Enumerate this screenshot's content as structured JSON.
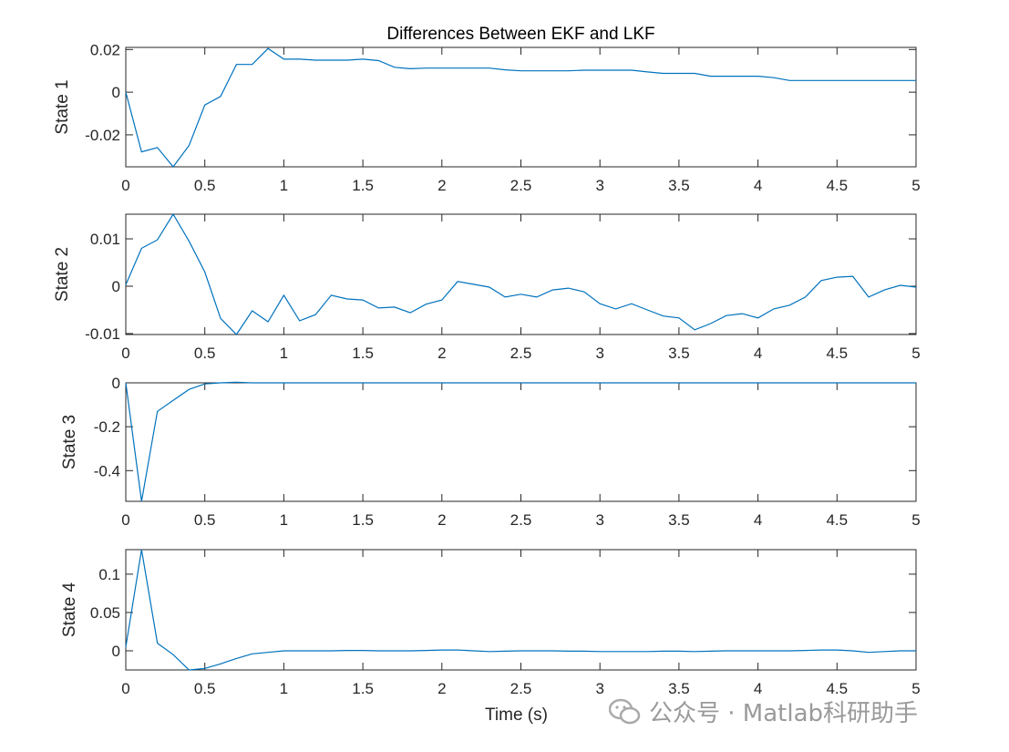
{
  "chart_data": [
    {
      "type": "line",
      "title": "Differences Between EKF and LKF",
      "ylabel": "State 1",
      "xlabel": "",
      "xlim": [
        0,
        5
      ],
      "ylim": [
        -0.035,
        0.021
      ],
      "xticks": [
        "0",
        "0.5",
        "1",
        "1.5",
        "2",
        "2.5",
        "3",
        "3.5",
        "4",
        "4.5",
        "5"
      ],
      "yticks": [
        -0.02,
        0,
        0.02
      ],
      "ytick_labels": [
        "-0.02",
        "0",
        "0.02"
      ],
      "grid": false,
      "x_step": 0.1,
      "values": [
        0,
        -0.028,
        -0.026,
        -0.035,
        -0.025,
        -0.006,
        -0.002,
        0.013,
        0.013,
        0.0205,
        0.0155,
        0.0155,
        0.015,
        0.015,
        0.015,
        0.0155,
        0.0148,
        0.0117,
        0.011,
        0.0113,
        0.0113,
        0.0113,
        0.0113,
        0.0113,
        0.0105,
        0.01,
        0.01,
        0.01,
        0.01,
        0.0103,
        0.0103,
        0.0103,
        0.0103,
        0.0095,
        0.0088,
        0.0088,
        0.0088,
        0.0075,
        0.0075,
        0.0075,
        0.0075,
        0.0068,
        0.0055,
        0.0055,
        0.0055,
        0.0055,
        0.0055,
        0.0055,
        0.0055,
        0.0055,
        0.0055
      ]
    },
    {
      "type": "line",
      "title": "",
      "ylabel": "State 2",
      "xlabel": "",
      "xlim": [
        0,
        5
      ],
      "ylim": [
        -0.0102,
        0.0152
      ],
      "xticks": [
        "0",
        "0.5",
        "1",
        "1.5",
        "2",
        "2.5",
        "3",
        "3.5",
        "4",
        "4.5",
        "5"
      ],
      "yticks": [
        -0.01,
        0,
        0.01
      ],
      "ytick_labels": [
        "-0.01",
        "0",
        "0.01"
      ],
      "grid": false,
      "x_step": 0.1,
      "values": [
        0.0003,
        0.008,
        0.0098,
        0.0152,
        0.0095,
        0.003,
        -0.0068,
        -0.0102,
        -0.0052,
        -0.0075,
        -0.0019,
        -0.0073,
        -0.006,
        -0.0019,
        -0.0027,
        -0.0029,
        -0.0046,
        -0.0044,
        -0.0056,
        -0.0038,
        -0.0029,
        0.001,
        0.0004,
        -0.0002,
        -0.0023,
        -0.0017,
        -0.0023,
        -0.0008,
        -0.0004,
        -0.0012,
        -0.0037,
        -0.0048,
        -0.0037,
        -0.005,
        -0.0063,
        -0.0067,
        -0.0092,
        -0.0079,
        -0.0062,
        -0.0058,
        -0.0067,
        -0.0048,
        -0.004,
        -0.0023,
        0.0012,
        0.0019,
        0.0021,
        -0.0023,
        -0.0008,
        0.0002,
        -0.0002
      ]
    },
    {
      "type": "line",
      "title": "",
      "ylabel": "State 3",
      "xlabel": "",
      "xlim": [
        0,
        5
      ],
      "ylim": [
        -0.54,
        0
      ],
      "xticks": [
        "0",
        "0.5",
        "1",
        "1.5",
        "2",
        "2.5",
        "3",
        "3.5",
        "4",
        "4.5",
        "5"
      ],
      "yticks": [
        -0.4,
        -0.2,
        0
      ],
      "ytick_labels": [
        "-0.4",
        "-0.2",
        "0"
      ],
      "grid": false,
      "x_step": 0.1,
      "values": [
        0,
        -0.54,
        -0.13,
        -0.08,
        -0.03,
        -0.005,
        0,
        0.003,
        0,
        0,
        0,
        0,
        0,
        0,
        0,
        0,
        0,
        0,
        0,
        0,
        0,
        0,
        0,
        0,
        0,
        0,
        0,
        0,
        0,
        0,
        0,
        0,
        0,
        0,
        0,
        0,
        0,
        0,
        0,
        0,
        0,
        0,
        0,
        0,
        0,
        0,
        0,
        0,
        0,
        0,
        0
      ]
    },
    {
      "type": "line",
      "title": "",
      "ylabel": "State 4",
      "xlabel": "Time (s)",
      "xlim": [
        0,
        5
      ],
      "ylim": [
        -0.025,
        0.132
      ],
      "xticks": [
        "0",
        "0.5",
        "1",
        "1.5",
        "2",
        "2.5",
        "3",
        "3.5",
        "4",
        "4.5",
        "5"
      ],
      "yticks": [
        0,
        0.05,
        0.1
      ],
      "ytick_labels": [
        "0",
        "0.05",
        "0.1"
      ],
      "grid": false,
      "x_step": 0.1,
      "values": [
        0.005,
        0.132,
        0.01,
        -0.005,
        -0.025,
        -0.023,
        -0.017,
        -0.01,
        -0.004,
        -0.002,
        0,
        0,
        0,
        0,
        0.0005,
        0.0005,
        0,
        0,
        0,
        0.0005,
        0.001,
        0.001,
        0,
        -0.001,
        -0.0005,
        0,
        0,
        0,
        -0.0005,
        -0.0005,
        -0.001,
        -0.001,
        -0.001,
        -0.001,
        -0.0005,
        -0.0005,
        -0.001,
        -0.0005,
        0,
        0,
        0,
        0,
        0,
        0.0005,
        0.001,
        0.001,
        0,
        -0.002,
        -0.001,
        0,
        0
      ]
    }
  ],
  "line_color": "#0072BD",
  "watermark": {
    "icon": "wechat-icon",
    "text": "公众号 · Matlab科研助手"
  }
}
